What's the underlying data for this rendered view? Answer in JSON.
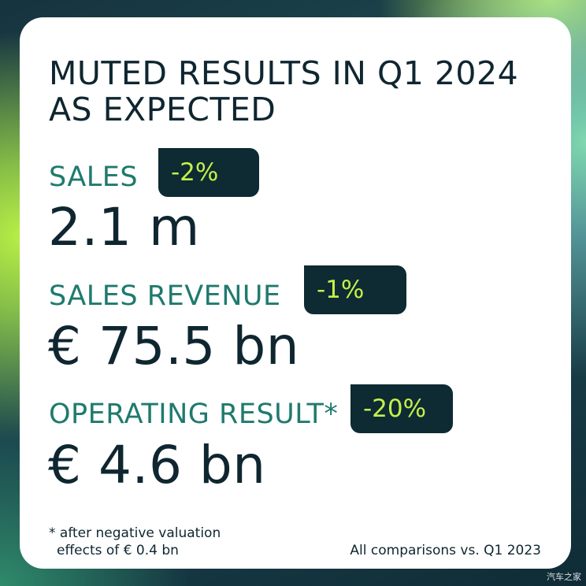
{
  "headline": {
    "line1": "MUTED RESULTS IN Q1 2024",
    "line2": "AS EXPECTED"
  },
  "metrics": [
    {
      "label": "SALES",
      "change": "-2%",
      "value": "2.1 m"
    },
    {
      "label": "SALES REVENUE",
      "change": "-1%",
      "value": "€ 75.5 bn"
    },
    {
      "label": "OPERATING RESULT*",
      "change": "-20%",
      "value": "€ 4.6 bn"
    }
  ],
  "footnote": {
    "line1": "* after negative valuation",
    "line2": "effects of € 0.4 bn"
  },
  "comparison_note": "All comparisons vs. Q1 2023",
  "watermark": "汽车之家",
  "colors": {
    "card_background": "#ffffff",
    "label_teal": "#1f7a6e",
    "badge_background": "#0e2a33",
    "badge_text_lime": "#c4f04a",
    "text_dark": "#0f2630"
  }
}
